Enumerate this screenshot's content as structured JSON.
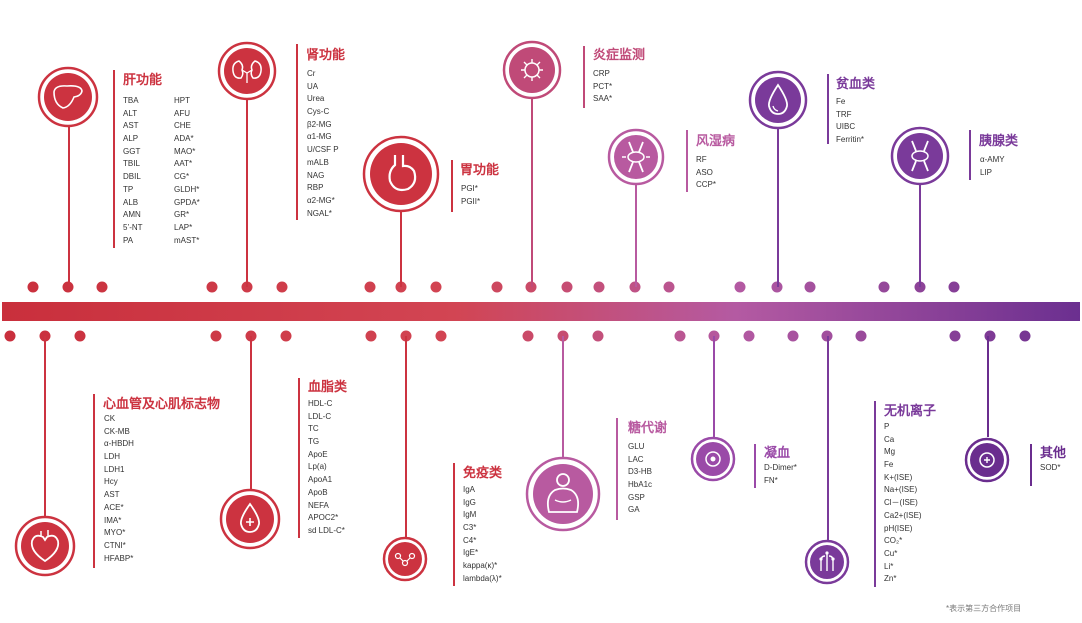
{
  "colors": {
    "red": "#cc3340",
    "magenta": "#b85aa0",
    "purple": "#7a3a9a"
  },
  "footnote": "*表示第三方合作项目",
  "groups": [
    {
      "id": "liver",
      "title": "肝功能",
      "icon": "liver-icon",
      "color": "#cc3340",
      "items": [
        "TBA",
        "ALT",
        "AST",
        "ALP",
        "GGT",
        "TBIL",
        "DBIL",
        "TP",
        "ALB",
        "AMN",
        "5’-NT",
        "PA"
      ],
      "items2": [
        "HPT",
        "AFU",
        "CHE",
        "ADA*",
        "MAO*",
        "AAT*",
        "CG*",
        "GLDH*",
        "GPDA*",
        "GR*",
        "LAP*",
        "mAST*"
      ]
    },
    {
      "id": "kidney",
      "title": "肾功能",
      "icon": "kidney-icon",
      "color": "#cc3340",
      "items": [
        "Cr",
        "UA",
        "Urea",
        "Cys-C",
        "β2-MG",
        "α1-MG",
        "U/CSF P",
        "mALB",
        "NAG",
        "RBP",
        "α2-MG*",
        "NGAL*"
      ]
    },
    {
      "id": "stomach",
      "title": "胃功能",
      "icon": "stomach-icon",
      "color": "#cc3340",
      "items": [
        "PGI*",
        "PGII*"
      ]
    },
    {
      "id": "inflammation",
      "title": "炎症监测",
      "icon": "virus-icon",
      "color": "#c04a78",
      "items": [
        "CRP",
        "PCT*",
        "SAA*"
      ]
    },
    {
      "id": "rheumatism",
      "title": "风湿病",
      "icon": "joint-icon",
      "color": "#b85aa0",
      "items": [
        "RF",
        "ASO",
        "CCP*"
      ]
    },
    {
      "id": "anemia",
      "title": "贫血类",
      "icon": "blood-drop-icon",
      "color": "#7a3a9a",
      "items": [
        "Fe",
        "TRF",
        "UIBC",
        "Ferritin*"
      ]
    },
    {
      "id": "pancreas",
      "title": "胰腺类",
      "icon": "pancreas-icon",
      "color": "#7a3a9a",
      "items": [
        "α-AMY",
        "LIP"
      ]
    },
    {
      "id": "cardiac",
      "title": "心血管及心肌标志物",
      "icon": "heart-icon",
      "color": "#cc3340",
      "items": [
        "CK",
        "CK-MB",
        "α-HBDH",
        "LDH",
        "LDH1",
        "Hcy",
        "AST",
        "ACE*",
        "IMA*",
        "MYO*",
        "CTNI*",
        "HFABP*"
      ]
    },
    {
      "id": "lipid",
      "title": "血脂类",
      "icon": "lipid-drop-icon",
      "color": "#cc3340",
      "items": [
        "HDL-C",
        "LDL-C",
        "TC",
        "TG",
        "ApoE",
        "Lp(a)",
        "ApoA1",
        "ApoB",
        "NEFA",
        "APOC2*",
        "sd LDL-C*"
      ]
    },
    {
      "id": "immune",
      "title": "免疫类",
      "icon": "molecule-icon",
      "color": "#cc3340",
      "items": [
        "IgA",
        "IgG",
        "IgM",
        "C3*",
        "C4*",
        "IgE*",
        "kappa(κ)*",
        "lambda(λ)*"
      ]
    },
    {
      "id": "metabolism",
      "title": "糖代谢",
      "icon": "body-icon",
      "color": "#b85aa0",
      "items": [
        "GLU",
        "LAC",
        "D3-HB",
        "HbA1c",
        "GSP",
        "GA"
      ]
    },
    {
      "id": "coagulation",
      "title": "凝血",
      "icon": "coagulation-icon",
      "color": "#9a4aa8",
      "items": [
        "D-Dimer*",
        "FN*"
      ]
    },
    {
      "id": "ions",
      "title": "无机离子",
      "icon": "ion-icon",
      "color": "#7a3a9a",
      "items": [
        "P",
        "Ca",
        "Mg",
        "Fe",
        "K+(ISE)",
        "Na+(ISE)",
        "Cl－(ISE)",
        "Ca2+(ISE)",
        "pH(ISE)",
        "CO₂*",
        "Cu*",
        "Li*",
        "Zn*"
      ]
    },
    {
      "id": "other",
      "title": "其他",
      "icon": "other-icon",
      "color": "#6a2d8e",
      "items": [
        "SOD*"
      ]
    }
  ]
}
